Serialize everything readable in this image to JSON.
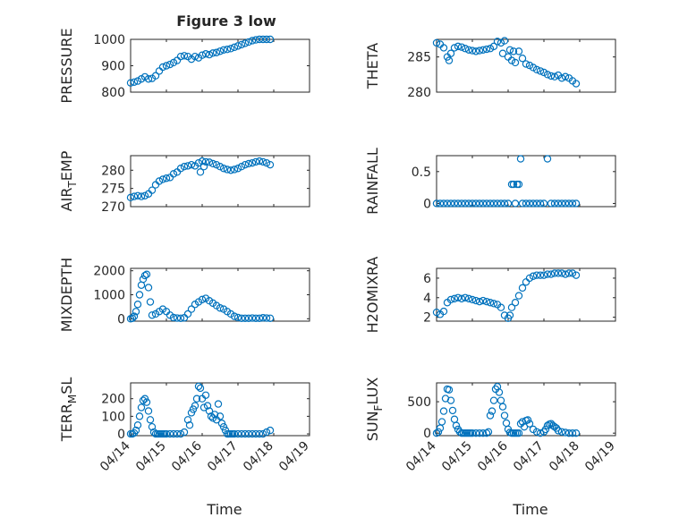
{
  "figure": {
    "title": "Figure 3 low",
    "marker_color": "#0072BD"
  },
  "chart_data": [
    {
      "type": "scatter",
      "title": "Figure 3 low",
      "ylabel": "PRESSURE",
      "ylabel_sub": null,
      "ylabel_rest": null,
      "xlabel": "",
      "ylim": [
        800,
        1000
      ],
      "yticks": [
        "800",
        "900",
        "1000"
      ],
      "ytick_values": [
        800,
        900,
        1000
      ],
      "xlim": [
        0,
        5
      ],
      "xticks": [],
      "grid": true,
      "series": [
        {
          "x_days": [
            0.0,
            0.1,
            0.2,
            0.3,
            0.4,
            0.5,
            0.6,
            0.7,
            0.8,
            0.9,
            1.0,
            1.1,
            1.2,
            1.3,
            1.4,
            1.5,
            1.6,
            1.7,
            1.8,
            1.9,
            2.0,
            2.1,
            2.2,
            2.3,
            2.4,
            2.5,
            2.6,
            2.7,
            2.8,
            2.9,
            3.0,
            3.1,
            3.2,
            3.3,
            3.4,
            3.5,
            3.6,
            3.7,
            3.8,
            3.9
          ],
          "y": [
            835,
            838,
            842,
            850,
            858,
            850,
            852,
            862,
            880,
            895,
            900,
            905,
            912,
            920,
            935,
            938,
            935,
            925,
            935,
            930,
            940,
            945,
            942,
            948,
            950,
            955,
            960,
            962,
            965,
            970,
            975,
            980,
            985,
            990,
            995,
            998,
            1000,
            1000,
            1000,
            1000
          ]
        }
      ]
    },
    {
      "type": "scatter",
      "title": "",
      "ylabel": "THETA",
      "ylabel_sub": null,
      "ylabel_rest": null,
      "xlabel": "",
      "ylim": [
        280,
        287.5
      ],
      "yticks": [
        "280",
        "285"
      ],
      "ytick_values": [
        280,
        285
      ],
      "xlim": [
        0,
        5
      ],
      "xticks": [],
      "grid": true,
      "series": [
        {
          "x_days": [
            0.0,
            0.1,
            0.2,
            0.3,
            0.35,
            0.4,
            0.5,
            0.6,
            0.7,
            0.8,
            0.9,
            1.0,
            1.1,
            1.2,
            1.3,
            1.4,
            1.5,
            1.6,
            1.7,
            1.8,
            1.85,
            1.9,
            2.0,
            2.05,
            2.1,
            2.15,
            2.2,
            2.3,
            2.4,
            2.5,
            2.6,
            2.7,
            2.8,
            2.9,
            3.0,
            3.1,
            3.2,
            3.3,
            3.4,
            3.5,
            3.6,
            3.7,
            3.8,
            3.9
          ],
          "y": [
            287,
            286.8,
            286.3,
            285,
            284.5,
            285.5,
            286.3,
            286.5,
            286.4,
            286.2,
            286.0,
            285.9,
            285.8,
            285.9,
            286.0,
            286.1,
            286.2,
            286.5,
            287.2,
            287.0,
            285.5,
            287.3,
            285.0,
            286.0,
            284.5,
            285.8,
            284.2,
            285.8,
            284.8,
            284.0,
            283.8,
            283.5,
            283.2,
            283.0,
            282.8,
            282.5,
            282.3,
            282.2,
            282.4,
            282.0,
            282.2,
            282.0,
            281.6,
            281.2
          ]
        }
      ]
    },
    {
      "type": "scatter",
      "title": "",
      "ylabel": "AIR",
      "ylabel_sub": "T",
      "ylabel_rest": "EMP",
      "xlabel": "",
      "ylim": [
        270,
        284
      ],
      "yticks": [
        "270",
        "275",
        "280"
      ],
      "ytick_values": [
        270,
        275,
        280
      ],
      "xlim": [
        0,
        5
      ],
      "xticks": [],
      "grid": true,
      "series": [
        {
          "x_days": [
            0.0,
            0.1,
            0.2,
            0.3,
            0.4,
            0.5,
            0.6,
            0.7,
            0.8,
            0.9,
            1.0,
            1.1,
            1.2,
            1.3,
            1.4,
            1.5,
            1.6,
            1.7,
            1.8,
            1.9,
            1.95,
            2.0,
            2.05,
            2.1,
            2.2,
            2.3,
            2.4,
            2.5,
            2.6,
            2.7,
            2.8,
            2.9,
            3.0,
            3.1,
            3.2,
            3.3,
            3.4,
            3.5,
            3.6,
            3.7,
            3.8,
            3.9
          ],
          "y": [
            272.5,
            272.8,
            273.0,
            272.8,
            273.0,
            273.5,
            274.5,
            276.0,
            277.0,
            277.5,
            277.8,
            278.0,
            279.0,
            279.5,
            280.5,
            281.0,
            281.2,
            281.5,
            281.2,
            282.0,
            279.5,
            282.5,
            281.0,
            282.3,
            282.2,
            281.8,
            281.5,
            281.0,
            280.5,
            280.2,
            280.0,
            280.2,
            280.5,
            281.0,
            281.5,
            281.8,
            282.0,
            282.3,
            282.5,
            282.3,
            282.0,
            281.5
          ]
        }
      ]
    },
    {
      "type": "scatter",
      "title": "",
      "ylabel": "RAINFALL",
      "ylabel_sub": null,
      "ylabel_rest": null,
      "xlabel": "",
      "ylim": [
        -0.05,
        0.75
      ],
      "yticks": [
        "0",
        "0.5"
      ],
      "ytick_values": [
        0,
        0.5
      ],
      "xlim": [
        0,
        5
      ],
      "xticks": [],
      "grid": true,
      "series": [
        {
          "x_days": [
            0.0,
            0.1,
            0.2,
            0.3,
            0.4,
            0.5,
            0.6,
            0.7,
            0.8,
            0.9,
            1.0,
            1.1,
            1.2,
            1.3,
            1.4,
            1.5,
            1.6,
            1.7,
            1.8,
            1.9,
            2.0,
            2.1,
            2.15,
            2.2,
            2.25,
            2.3,
            2.35,
            2.4,
            2.5,
            2.6,
            2.7,
            2.8,
            2.9,
            3.0,
            3.1,
            3.2,
            3.3,
            3.4,
            3.5,
            3.6,
            3.7,
            3.8,
            3.9
          ],
          "y": [
            0,
            0,
            0,
            0,
            0,
            0,
            0,
            0,
            0,
            0,
            0,
            0,
            0,
            0,
            0,
            0,
            0,
            0,
            0,
            0,
            0,
            0.3,
            0.3,
            0,
            0.3,
            0.3,
            0.7,
            0,
            0,
            0,
            0,
            0,
            0,
            0,
            0.7,
            0,
            0,
            0,
            0,
            0,
            0,
            0,
            0
          ]
        }
      ]
    },
    {
      "type": "scatter",
      "title": "",
      "ylabel": "MIXDEPTH",
      "ylabel_sub": null,
      "ylabel_rest": null,
      "xlabel": "",
      "ylim": [
        -100,
        2100
      ],
      "yticks": [
        "0",
        "1000",
        "2000"
      ],
      "ytick_values": [
        0,
        1000,
        2000
      ],
      "xlim": [
        0,
        5
      ],
      "xticks": [],
      "grid": true,
      "series": [
        {
          "x_days": [
            0.0,
            0.05,
            0.1,
            0.15,
            0.2,
            0.25,
            0.3,
            0.35,
            0.4,
            0.45,
            0.5,
            0.55,
            0.6,
            0.7,
            0.8,
            0.9,
            1.0,
            1.1,
            1.2,
            1.3,
            1.4,
            1.5,
            1.6,
            1.7,
            1.8,
            1.9,
            2.0,
            2.1,
            2.2,
            2.3,
            2.4,
            2.5,
            2.6,
            2.7,
            2.8,
            2.9,
            3.0,
            3.1,
            3.2,
            3.3,
            3.4,
            3.5,
            3.6,
            3.7,
            3.8,
            3.9
          ],
          "y": [
            0,
            20,
            100,
            300,
            600,
            1000,
            1400,
            1650,
            1800,
            1850,
            1300,
            700,
            150,
            200,
            300,
            400,
            300,
            150,
            50,
            30,
            20,
            40,
            200,
            400,
            600,
            700,
            800,
            850,
            750,
            650,
            550,
            450,
            400,
            300,
            200,
            100,
            50,
            20,
            20,
            20,
            30,
            20,
            20,
            40,
            30,
            20
          ]
        }
      ]
    },
    {
      "type": "scatter",
      "title": "",
      "ylabel": "H2OMIXRA",
      "ylabel_sub": null,
      "ylabel_rest": null,
      "xlabel": "",
      "ylim": [
        1.6,
        7
      ],
      "yticks": [
        "2",
        "4",
        "6"
      ],
      "ytick_values": [
        2,
        4,
        6
      ],
      "xlim": [
        0,
        5
      ],
      "xticks": [],
      "grid": true,
      "series": [
        {
          "x_days": [
            0.0,
            0.1,
            0.2,
            0.3,
            0.4,
            0.5,
            0.6,
            0.7,
            0.8,
            0.9,
            1.0,
            1.1,
            1.2,
            1.3,
            1.4,
            1.5,
            1.6,
            1.7,
            1.8,
            1.9,
            2.0,
            2.05,
            2.1,
            2.2,
            2.3,
            2.4,
            2.5,
            2.6,
            2.7,
            2.8,
            2.9,
            3.0,
            3.1,
            3.2,
            3.3,
            3.4,
            3.5,
            3.6,
            3.7,
            3.8,
            3.9
          ],
          "y": [
            2.5,
            2.3,
            2.6,
            3.5,
            3.8,
            3.9,
            4.0,
            3.9,
            4.0,
            3.9,
            3.8,
            3.7,
            3.6,
            3.7,
            3.6,
            3.5,
            3.4,
            3.3,
            3.0,
            2.2,
            1.9,
            2.2,
            3.0,
            3.5,
            4.2,
            5.0,
            5.6,
            6.0,
            6.2,
            6.3,
            6.3,
            6.3,
            6.4,
            6.4,
            6.5,
            6.5,
            6.5,
            6.4,
            6.5,
            6.5,
            6.3
          ]
        }
      ]
    },
    {
      "type": "scatter",
      "title": "",
      "ylabel": "TERR",
      "ylabel_sub": "M",
      "ylabel_rest": "SL",
      "xlabel": "Time",
      "ylim": [
        -10,
        290
      ],
      "yticks": [
        "0",
        "100",
        "200"
      ],
      "ytick_values": [
        0,
        100,
        200
      ],
      "xlim": [
        0,
        5
      ],
      "xticks": [
        "04/14",
        "04/15",
        "04/16",
        "04/17",
        "04/18",
        "04/19"
      ],
      "grid": true,
      "series": [
        {
          "x_days": [
            0.0,
            0.05,
            0.1,
            0.15,
            0.2,
            0.25,
            0.3,
            0.35,
            0.4,
            0.45,
            0.5,
            0.55,
            0.6,
            0.65,
            0.7,
            0.75,
            0.8,
            0.85,
            0.9,
            0.95,
            1.0,
            1.1,
            1.2,
            1.3,
            1.4,
            1.5,
            1.6,
            1.65,
            1.7,
            1.75,
            1.8,
            1.85,
            1.9,
            1.95,
            2.0,
            2.05,
            2.1,
            2.15,
            2.2,
            2.25,
            2.3,
            2.35,
            2.4,
            2.45,
            2.5,
            2.55,
            2.6,
            2.65,
            2.7,
            2.75,
            2.8,
            2.85,
            2.9,
            3.0,
            3.1,
            3.2,
            3.3,
            3.4,
            3.5,
            3.6,
            3.7,
            3.8,
            3.9
          ],
          "y": [
            0,
            0,
            5,
            20,
            50,
            100,
            150,
            190,
            200,
            180,
            130,
            80,
            40,
            10,
            0,
            0,
            0,
            0,
            0,
            0,
            0,
            0,
            0,
            0,
            0,
            10,
            80,
            50,
            120,
            140,
            160,
            200,
            270,
            260,
            200,
            150,
            220,
            160,
            130,
            100,
            90,
            110,
            80,
            170,
            100,
            60,
            40,
            20,
            0,
            0,
            0,
            0,
            0,
            0,
            0,
            0,
            0,
            0,
            0,
            0,
            0,
            10,
            20
          ]
        }
      ]
    },
    {
      "type": "scatter",
      "title": "",
      "ylabel": "SUN",
      "ylabel_sub": "F",
      "ylabel_rest": "LUX",
      "xlabel": "Time",
      "ylim": [
        -40,
        800
      ],
      "yticks": [
        "0",
        "500"
      ],
      "ytick_values": [
        0,
        500
      ],
      "xlim": [
        0,
        5
      ],
      "xticks": [
        "04/14",
        "04/15",
        "04/16",
        "04/17",
        "04/18",
        "04/19"
      ],
      "grid": true,
      "series": [
        {
          "x_days": [
            0.0,
            0.05,
            0.1,
            0.15,
            0.2,
            0.25,
            0.3,
            0.35,
            0.4,
            0.45,
            0.5,
            0.55,
            0.6,
            0.65,
            0.7,
            0.75,
            0.8,
            0.85,
            0.9,
            0.95,
            1.0,
            1.1,
            1.2,
            1.3,
            1.4,
            1.45,
            1.5,
            1.55,
            1.6,
            1.65,
            1.7,
            1.75,
            1.8,
            1.85,
            1.9,
            1.95,
            2.0,
            2.05,
            2.1,
            2.15,
            2.2,
            2.25,
            2.3,
            2.35,
            2.4,
            2.45,
            2.5,
            2.55,
            2.6,
            2.7,
            2.8,
            2.9,
            3.0,
            3.05,
            3.1,
            3.15,
            3.2,
            3.25,
            3.3,
            3.35,
            3.4,
            3.5,
            3.6,
            3.7,
            3.8,
            3.9
          ],
          "y": [
            0,
            20,
            80,
            180,
            350,
            550,
            700,
            690,
            520,
            360,
            220,
            120,
            60,
            20,
            0,
            0,
            0,
            0,
            0,
            0,
            0,
            0,
            0,
            0,
            0,
            20,
            280,
            350,
            520,
            700,
            740,
            650,
            520,
            420,
            280,
            160,
            60,
            10,
            0,
            0,
            0,
            0,
            0,
            150,
            180,
            100,
            200,
            210,
            150,
            60,
            20,
            0,
            20,
            60,
            120,
            140,
            150,
            120,
            100,
            80,
            40,
            20,
            10,
            0,
            0,
            0
          ]
        }
      ]
    }
  ]
}
